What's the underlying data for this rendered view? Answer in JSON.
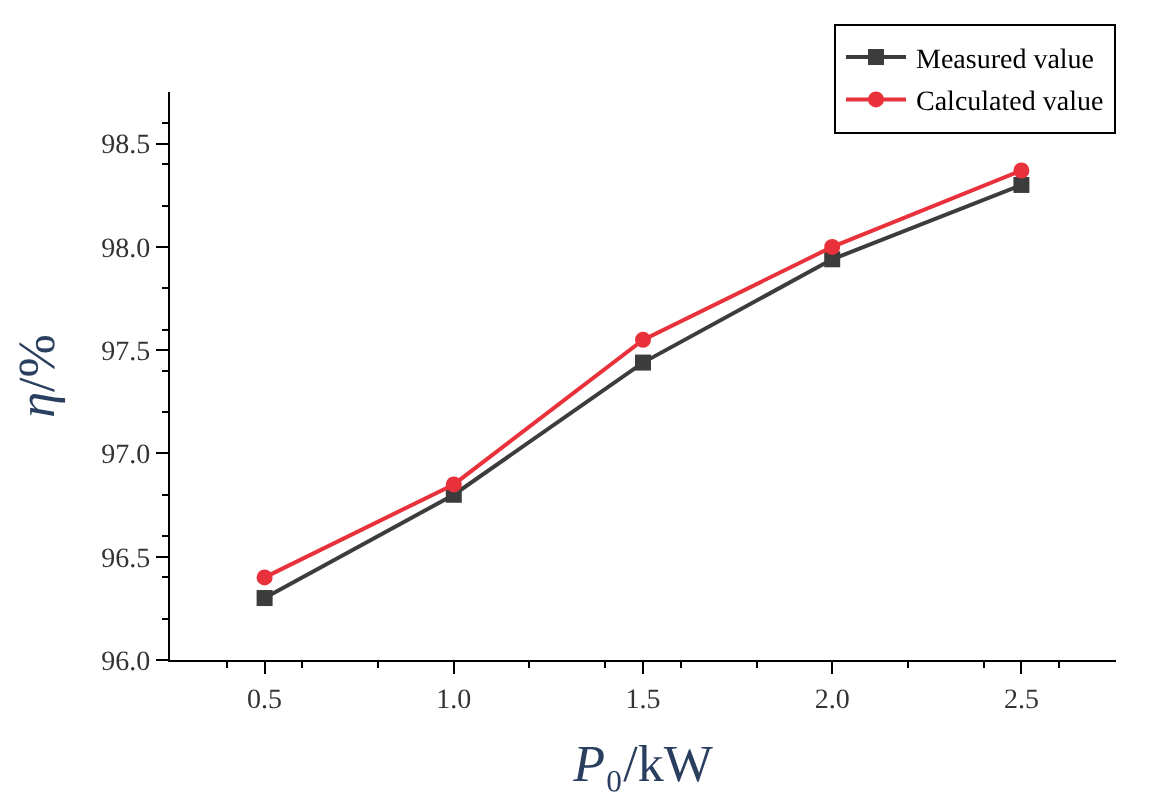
{
  "chart_data": {
    "type": "line",
    "xlabel": "P₀/kW",
    "ylabel": "η/%",
    "x": [
      0.5,
      1.0,
      1.5,
      2.0,
      2.5
    ],
    "series": [
      {
        "name": "Measured value",
        "color": "#3c3c3c",
        "marker": "square",
        "values": [
          96.3,
          96.8,
          97.44,
          97.94,
          98.3
        ]
      },
      {
        "name": "Calculated value",
        "color": "#e8313a",
        "marker": "circle",
        "values": [
          96.4,
          96.85,
          97.55,
          98.0,
          98.37
        ]
      }
    ],
    "xlim": [
      0.25,
      2.75
    ],
    "ylim": [
      96.0,
      98.75
    ],
    "xticks": [
      0.5,
      {
        "value": 1,
        "label": "1.0"
      },
      1.5,
      {
        "value": 2,
        "label": "2.0"
      },
      2.5
    ],
    "yticks": [
      {
        "value": 96,
        "label": "96.0"
      },
      96.5,
      {
        "value": 97,
        "label": "97.0"
      },
      97.5,
      {
        "value": 98,
        "label": "98.0"
      },
      98.5
    ],
    "legend": "top right",
    "line_style": "solid"
  }
}
